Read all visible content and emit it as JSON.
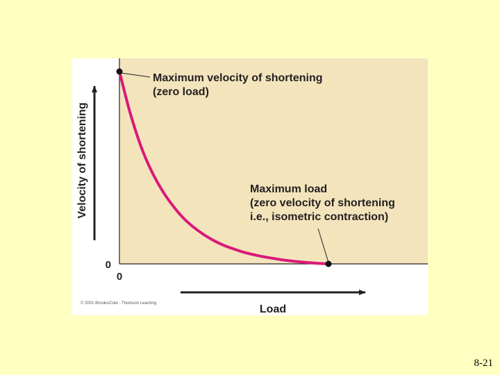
{
  "slide": {
    "number": "8-21",
    "background": "#ffffc2"
  },
  "chart_data": {
    "type": "line",
    "title": "",
    "xlabel": "Load",
    "ylabel": "Velocity of shortening",
    "x_tick_labels": [
      "0"
    ],
    "y_tick_labels": [
      "0"
    ],
    "xlim": [
      0,
      1
    ],
    "ylim": [
      0,
      1
    ],
    "series": [
      {
        "x": [
          0.0,
          0.05,
          0.1,
          0.15,
          0.2,
          0.25,
          0.3,
          0.35,
          0.4,
          0.45,
          0.5,
          0.55,
          0.6,
          0.65,
          0.7,
          0.75,
          0.8,
          0.85,
          0.9,
          0.95,
          1.0
        ],
        "y": [
          1.0,
          0.79,
          0.62,
          0.49,
          0.39,
          0.31,
          0.245,
          0.195,
          0.155,
          0.122,
          0.096,
          0.076,
          0.059,
          0.046,
          0.035,
          0.026,
          0.018,
          0.012,
          0.007,
          0.003,
          0.0
        ],
        "color": "#d9197a"
      }
    ],
    "points": [
      {
        "name": "max-velocity",
        "x": 0,
        "y": 1
      },
      {
        "name": "max-load",
        "x": 1,
        "y": 0
      }
    ],
    "annotations": [
      {
        "name": "max-velocity",
        "lines": [
          "Maximum velocity of shortening",
          "(zero load)"
        ]
      },
      {
        "name": "max-load",
        "lines": [
          "Maximum load",
          "(zero velocity of shortening",
          "i.e., isometric contraction)"
        ]
      }
    ],
    "plot_background": "#f3e4bc",
    "grid": false,
    "copyright": "© 2001 Brooks/Cole - Thomson Learning"
  }
}
